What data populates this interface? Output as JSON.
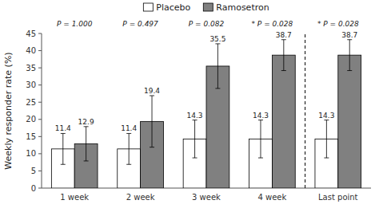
{
  "chart_data": {
    "type": "bar",
    "categories": [
      "1 week",
      "2 week",
      "3 week",
      "4 week",
      "Last point"
    ],
    "series": [
      {
        "name": "Placebo",
        "color": "#ffffff",
        "values": [
          11.4,
          11.4,
          14.3,
          14.3,
          14.3
        ],
        "errors": [
          4.5,
          4.5,
          5.5,
          5.5,
          5.5
        ]
      },
      {
        "name": "Ramosetron",
        "color": "#808080",
        "values": [
          12.9,
          19.4,
          35.5,
          38.7,
          38.7
        ],
        "errors": [
          5.0,
          7.5,
          6.5,
          4.5,
          4.5
        ]
      }
    ],
    "annotations": [
      "P = 1.000",
      "P = 0.497",
      "P = 0.082",
      "* P = 0.028",
      "* P = 0.028"
    ],
    "ylabel": "Weekly responder rate (%)",
    "ylim": [
      0,
      45
    ],
    "yticks": [
      0,
      5,
      10,
      15,
      20,
      25,
      30,
      35,
      40,
      45
    ],
    "grid": false,
    "legend": "top",
    "data_labels": true
  }
}
